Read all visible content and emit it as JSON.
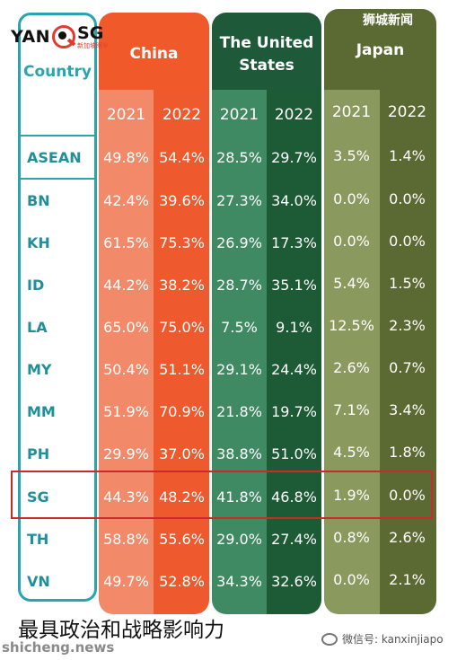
{
  "watermark_top": "狮城新闻",
  "logo": {
    "part1": "YAN",
    "part2": "SG",
    "sub": "新加坡眼®"
  },
  "header": {
    "country_label": "Country",
    "china": {
      "title": "China",
      "years": [
        "2021",
        "2022"
      ]
    },
    "us": {
      "title_line1": "The United",
      "title_line2": "States",
      "years": [
        "2021",
        "2022"
      ]
    },
    "japan": {
      "title": "Japan",
      "years": [
        "2021",
        "2022"
      ]
    }
  },
  "rows": [
    {
      "country": "ASEAN",
      "china": [
        "49.8%",
        "54.4%"
      ],
      "us": [
        "28.5%",
        "29.7%"
      ],
      "japan": [
        "3.5%",
        "1.4%"
      ]
    },
    {
      "country": "BN",
      "china": [
        "42.4%",
        "39.6%"
      ],
      "us": [
        "27.3%",
        "34.0%"
      ],
      "japan": [
        "0.0%",
        "0.0%"
      ]
    },
    {
      "country": "KH",
      "china": [
        "61.5%",
        "75.3%"
      ],
      "us": [
        "26.9%",
        "17.3%"
      ],
      "japan": [
        "0.0%",
        "0.0%"
      ]
    },
    {
      "country": "ID",
      "china": [
        "44.2%",
        "38.2%"
      ],
      "us": [
        "28.7%",
        "35.1%"
      ],
      "japan": [
        "5.4%",
        "1.5%"
      ]
    },
    {
      "country": "LA",
      "china": [
        "65.0%",
        "75.0%"
      ],
      "us": [
        "7.5%",
        "9.1%"
      ],
      "japan": [
        "12.5%",
        "2.3%"
      ]
    },
    {
      "country": "MY",
      "china": [
        "50.4%",
        "51.1%"
      ],
      "us": [
        "29.1%",
        "24.4%"
      ],
      "japan": [
        "2.6%",
        "0.7%"
      ]
    },
    {
      "country": "MM",
      "china": [
        "51.9%",
        "70.9%"
      ],
      "us": [
        "21.8%",
        "19.7%"
      ],
      "japan": [
        "7.1%",
        "3.4%"
      ]
    },
    {
      "country": "PH",
      "china": [
        "29.9%",
        "37.0%"
      ],
      "us": [
        "38.8%",
        "51.0%"
      ],
      "japan": [
        "4.5%",
        "1.8%"
      ]
    },
    {
      "country": "SG",
      "china": [
        "44.3%",
        "48.2%"
      ],
      "us": [
        "41.8%",
        "46.8%"
      ],
      "japan": [
        "1.9%",
        "0.0%"
      ]
    },
    {
      "country": "TH",
      "china": [
        "58.8%",
        "55.6%"
      ],
      "us": [
        "29.0%",
        "27.4%"
      ],
      "japan": [
        "0.8%",
        "2.6%"
      ]
    },
    {
      "country": "VN",
      "china": [
        "49.7%",
        "52.8%"
      ],
      "us": [
        "34.3%",
        "32.6%"
      ],
      "japan": [
        "0.0%",
        "2.1%"
      ]
    }
  ],
  "caption": "最具政治和战略影响力",
  "watermark_left": "shicheng.news",
  "watermark_right": "微信号: kanxinjiapo",
  "colors": {
    "teal": "#2aa4ad",
    "china_dark": "#ee5a2e",
    "china_light": "#f28a6a",
    "us_dark": "#1d5a36",
    "us_light": "#3f8a62",
    "japan_dark": "#5a6a32",
    "japan_light": "#8a9a5e",
    "highlight": "#cc2a2a"
  }
}
